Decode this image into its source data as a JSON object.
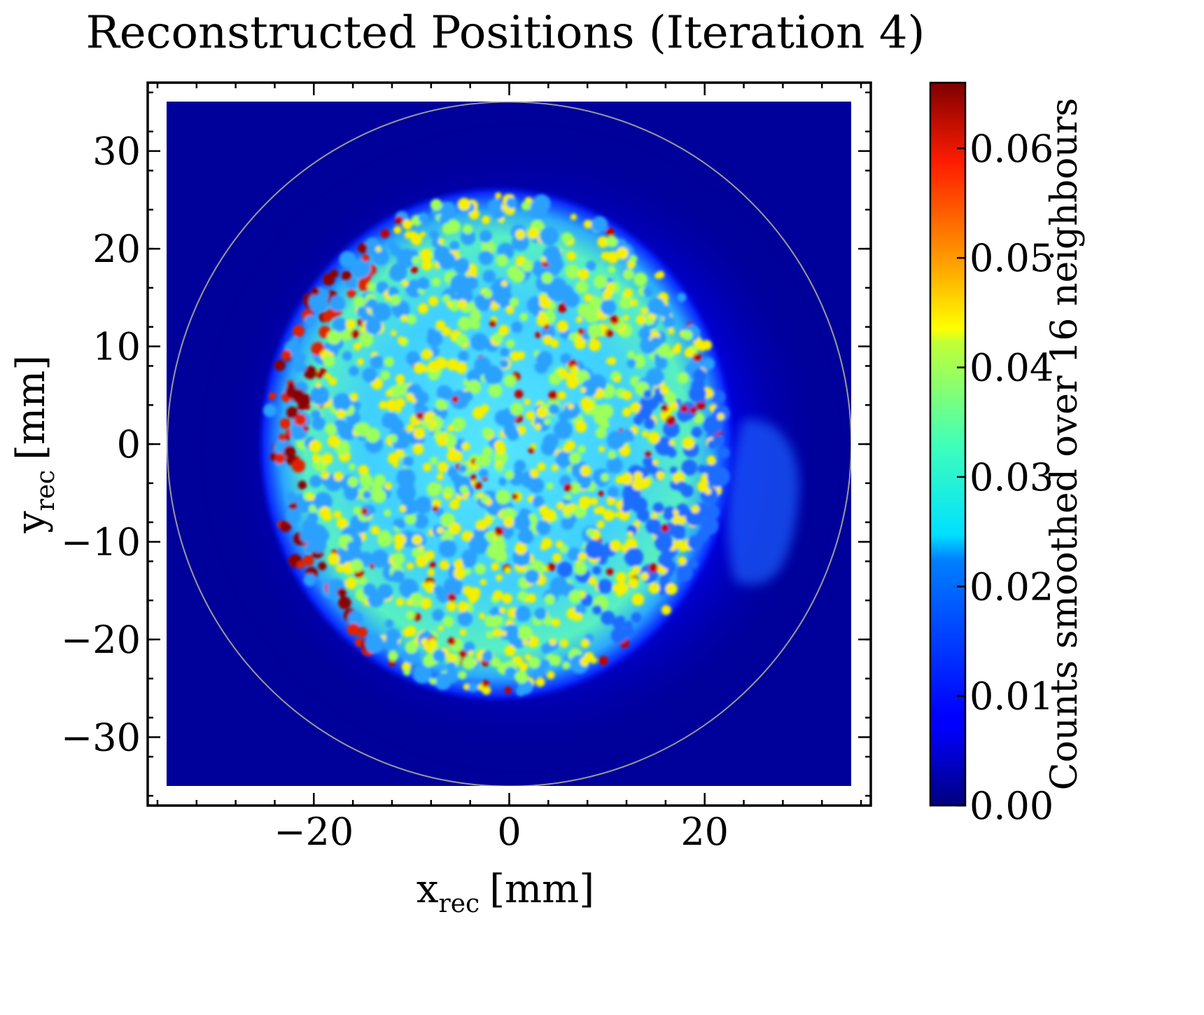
{
  "chart_data": {
    "type": "heatmap",
    "title": "Reconstructed Positions (Iteration 4)",
    "xlabel": {
      "base": "x",
      "sub": "rec",
      "unit": "[mm]"
    },
    "ylabel": {
      "base": "y",
      "sub": "rec",
      "unit": "[mm]"
    },
    "xlim": [
      -37,
      37
    ],
    "ylim": [
      -37,
      37
    ],
    "x_ticks": [
      {
        "value": -20,
        "label": "−20"
      },
      {
        "value": 0,
        "label": "0"
      },
      {
        "value": 20,
        "label": "20"
      }
    ],
    "y_ticks": [
      {
        "value": 30,
        "label": "30"
      },
      {
        "value": 20,
        "label": "20"
      },
      {
        "value": 10,
        "label": "10"
      },
      {
        "value": 0,
        "label": "0"
      },
      {
        "value": -10,
        "label": "−10"
      },
      {
        "value": -20,
        "label": "−20"
      },
      {
        "value": -30,
        "label": "−30"
      }
    ],
    "heatmap_extent": {
      "x": [
        -35,
        35
      ],
      "y": [
        -35,
        35
      ]
    },
    "overlay_circle": {
      "center": [
        0,
        0
      ],
      "radius": 35,
      "color": "#9a9a9a"
    },
    "hot_region": {
      "center": [
        -1.3,
        0
      ],
      "radius_x": 24.5,
      "radius_y": 26.5
    },
    "colormap": "jet",
    "colorbar": {
      "label": "Counts smoothed over 16 neighbours",
      "range": [
        0,
        0.066
      ],
      "ticks": [
        {
          "value": 0.0,
          "label": "0.00"
        },
        {
          "value": 0.01,
          "label": "0.01"
        },
        {
          "value": 0.02,
          "label": "0.02"
        },
        {
          "value": 0.03,
          "label": "0.03"
        },
        {
          "value": 0.04,
          "label": "0.04"
        },
        {
          "value": 0.05,
          "label": "0.05"
        },
        {
          "value": 0.06,
          "label": "0.06"
        }
      ]
    }
  }
}
